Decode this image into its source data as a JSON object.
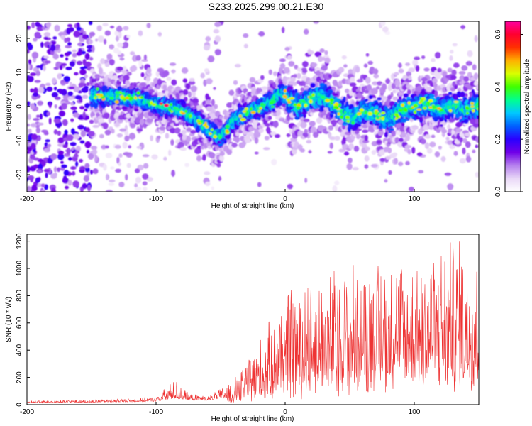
{
  "title": "S233.2025.299.00.21.E30",
  "chart_data": [
    {
      "type": "heatmap",
      "id": "spectrogram",
      "xlabel": "Height of straight line (km)",
      "ylabel": "Frequency (Hz)",
      "xlim": [
        -200,
        150
      ],
      "ylim": [
        -25,
        25
      ],
      "xticks": [
        -200,
        -100,
        0,
        100
      ],
      "xtick_labels": [
        "-200",
        "-100",
        "0",
        "100"
      ],
      "yticks": [
        -20,
        -10,
        0,
        10,
        20
      ],
      "ytick_labels": [
        "-20",
        "-10",
        "0",
        "10",
        "20"
      ],
      "colorbar": {
        "label": "Normalized spectral amplitude",
        "range": [
          0.0,
          0.65
        ],
        "ticks": [
          0.0,
          0.2,
          0.4,
          0.6
        ],
        "tick_labels": [
          "0.0",
          "0.2",
          "0.4",
          "0.6"
        ],
        "colormap": [
          "#ffffff",
          "#e9d8f7",
          "#b680ee",
          "#7000e8",
          "#2a00ff",
          "#0060ff",
          "#00c8ff",
          "#00ff90",
          "#40ff00",
          "#d8ff00",
          "#ffb000",
          "#ff3000",
          "#ff0030",
          "#ff00a0"
        ]
      },
      "ridge": [
        [
          -150,
          3
        ],
        [
          -130,
          3
        ],
        [
          -110,
          2
        ],
        [
          -100,
          0.5
        ],
        [
          -92,
          0
        ],
        [
          -80,
          -1
        ],
        [
          -70,
          -3.5
        ],
        [
          -55,
          -8
        ],
        [
          -50,
          -9
        ],
        [
          -45,
          -7
        ],
        [
          -40,
          -4
        ],
        [
          -30,
          -2
        ],
        [
          -20,
          -0.5
        ],
        [
          -10,
          1.5
        ],
        [
          -3,
          4
        ],
        [
          0,
          3
        ],
        [
          10,
          0
        ],
        [
          20,
          2.5
        ],
        [
          30,
          3
        ],
        [
          40,
          0
        ],
        [
          50,
          -3.5
        ],
        [
          60,
          -1.5
        ],
        [
          70,
          -2
        ],
        [
          80,
          -4
        ],
        [
          90,
          -1
        ],
        [
          100,
          0
        ],
        [
          110,
          1
        ],
        [
          120,
          -1
        ],
        [
          130,
          0
        ],
        [
          140,
          -1
        ],
        [
          150,
          0
        ]
      ]
    },
    {
      "type": "line",
      "id": "snr",
      "xlabel": "Height of straight line (km)",
      "ylabel": "SNR (10 * v/v)",
      "xlim": [
        -200,
        150
      ],
      "ylim": [
        0,
        1250
      ],
      "xticks": [
        -200,
        -100,
        0,
        100
      ],
      "xtick_labels": [
        "-200",
        "-100",
        "0",
        "100"
      ],
      "yticks": [
        0,
        200,
        400,
        600,
        800,
        1000,
        1200
      ],
      "ytick_labels": [
        "0",
        "200",
        "400",
        "600",
        "800",
        "1000",
        "1200"
      ],
      "color": "#ee3333",
      "envelope": [
        [
          -200,
          30
        ],
        [
          -150,
          35
        ],
        [
          -120,
          45
        ],
        [
          -100,
          60
        ],
        [
          -90,
          150
        ],
        [
          -85,
          190
        ],
        [
          -75,
          85
        ],
        [
          -60,
          60
        ],
        [
          -40,
          180
        ],
        [
          -20,
          470
        ],
        [
          -10,
          640
        ],
        [
          -3,
          800
        ],
        [
          0,
          820
        ],
        [
          10,
          870
        ],
        [
          20,
          980
        ],
        [
          40,
          1000
        ],
        [
          60,
          1050
        ],
        [
          80,
          1080
        ],
        [
          100,
          1100
        ],
        [
          120,
          1150
        ],
        [
          135,
          1240
        ],
        [
          150,
          1200
        ]
      ],
      "floor": [
        [
          -200,
          10
        ],
        [
          -100,
          18
        ],
        [
          -45,
          30
        ],
        [
          -20,
          70
        ],
        [
          0,
          110
        ],
        [
          30,
          150
        ],
        [
          60,
          190
        ],
        [
          100,
          220
        ],
        [
          150,
          230
        ]
      ]
    }
  ]
}
